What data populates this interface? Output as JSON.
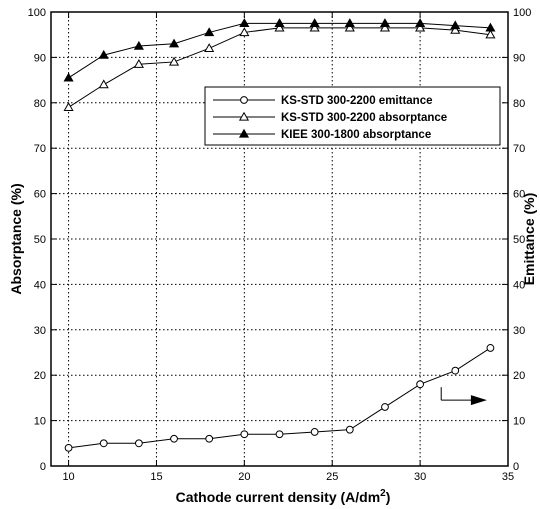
{
  "chart_data": {
    "type": "line",
    "xlabel": "Cathode current density (A/dm",
    "xlabel_sup": "2",
    "xlabel_close": ")",
    "ylabel_left": "Absorptance (%)",
    "ylabel_right": "Emittance (%)",
    "xlim": [
      9,
      35
    ],
    "ylim": [
      0,
      100
    ],
    "x_ticks": [
      10,
      15,
      20,
      25,
      30,
      35
    ],
    "y_ticks": [
      0,
      10,
      20,
      30,
      40,
      50,
      60,
      70,
      80,
      90,
      100
    ],
    "grid": true,
    "legend_placement": "upper-right",
    "series": [
      {
        "name": "KS-STD 300-2200 emittance",
        "marker": "open-circle",
        "axis": "right",
        "x": [
          10,
          12,
          14,
          16,
          18,
          20,
          22,
          24,
          26,
          28,
          30,
          32,
          34
        ],
        "values": [
          4,
          5,
          5,
          6,
          6,
          7,
          7,
          7.5,
          8,
          13,
          18,
          21,
          26
        ]
      },
      {
        "name": "KS-STD 300-2200 absorptance",
        "marker": "open-triangle",
        "axis": "left",
        "x": [
          10,
          12,
          14,
          16,
          18,
          20,
          22,
          24,
          26,
          28,
          30,
          32,
          34
        ],
        "values": [
          79,
          84,
          88.5,
          89,
          92,
          95.5,
          96.5,
          96.5,
          96.5,
          96.5,
          96.5,
          96,
          95
        ]
      },
      {
        "name": "KIEE 300-1800 absorptance",
        "marker": "filled-triangle",
        "axis": "left",
        "x": [
          10,
          12,
          14,
          16,
          18,
          20,
          22,
          24,
          26,
          28,
          30,
          32,
          34
        ],
        "values": [
          85.5,
          90.5,
          92.5,
          93,
          95.5,
          97.5,
          97.5,
          97.5,
          97.5,
          97.5,
          97.5,
          97,
          96.5
        ]
      }
    ],
    "annotation": {
      "type": "arrow",
      "points_to": "right-axis",
      "from": [
        31.2,
        14.5
      ],
      "to": [
        33.8,
        14.5
      ]
    }
  }
}
